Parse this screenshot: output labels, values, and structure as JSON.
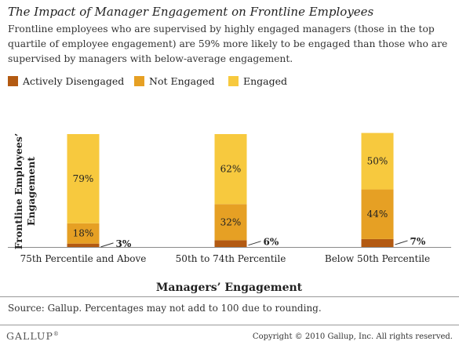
{
  "title": "The Impact of Manager Engagement on Frontline Employees",
  "subtitle": "Frontline employees who are supervised by highly engaged managers (those in the top quartile of employee engagement) are 59% more likely to be engaged than those who are supervised by managers with below-average engagement.",
  "legend": [
    {
      "label": "Actively Disengaged",
      "color": "#b35a12"
    },
    {
      "label": "Not Engaged",
      "color": "#e6a024"
    },
    {
      "label": "Engaged",
      "color": "#f7c93e"
    }
  ],
  "chart_data": {
    "type": "bar",
    "stacked": true,
    "xlabel": "Managers’ Engagement",
    "ylabel_lines": [
      "Frontline Employees’",
      "Engagement"
    ],
    "ylim": [
      0,
      100
    ],
    "grid": false,
    "legend_position": "top-left",
    "categories": [
      "75th Percentile and Above",
      "50th to 74th Percentile",
      "Below 50th Percentile"
    ],
    "series": [
      {
        "name": "Actively Disengaged",
        "color": "#b35a12",
        "values": [
          3,
          6,
          7
        ],
        "labels": [
          "3%",
          "6%",
          "7%"
        ]
      },
      {
        "name": "Not Engaged",
        "color": "#e6a024",
        "values": [
          18,
          32,
          44
        ],
        "labels": [
          "18%",
          "32%",
          "44%"
        ]
      },
      {
        "name": "Engaged",
        "color": "#f7c93e",
        "values": [
          79,
          62,
          50
        ],
        "labels": [
          "79%",
          "62%",
          "50%"
        ]
      }
    ]
  },
  "source": "Source: Gallup. Percentages may not add to 100 due to rounding.",
  "logo": "GALLUP",
  "logo_mark": "®",
  "copyright": "Copyright © 2010 Gallup, Inc. All rights reserved."
}
